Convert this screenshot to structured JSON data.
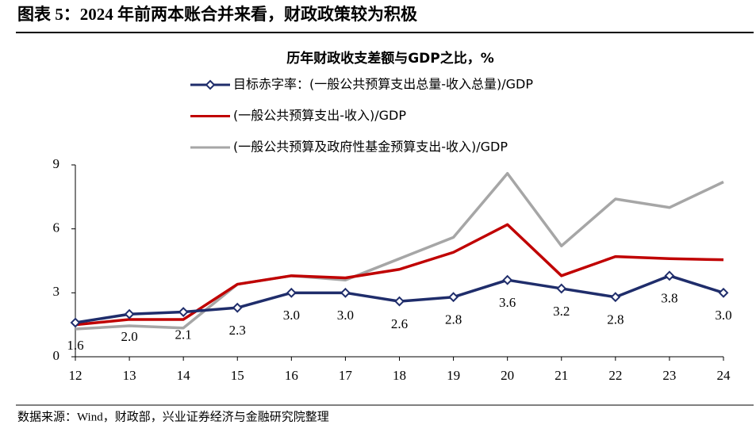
{
  "header": {
    "title": "图表 5：2024 年前两本账合并来看，财政政策较为积极"
  },
  "chart_data": {
    "type": "line",
    "title": "历年财政收支差额与GDP之比，%",
    "categories": [
      "12",
      "13",
      "14",
      "15",
      "16",
      "17",
      "18",
      "19",
      "20",
      "21",
      "22",
      "23",
      "24"
    ],
    "series": [
      {
        "name": "目标赤字率：(一般公共预算支出总量-收入总量)/GDP",
        "color": "#1f2d6b",
        "marker": "diamond",
        "values": [
          1.6,
          2.0,
          2.1,
          2.3,
          3.0,
          3.0,
          2.6,
          2.8,
          3.6,
          3.2,
          2.8,
          3.8,
          3.0
        ],
        "value_labels": [
          "1.6",
          "2.0",
          "2.1",
          "2.3",
          "3.0",
          "3.0",
          "2.6",
          "2.8",
          "3.6",
          "3.2",
          "2.8",
          "3.8",
          "3.0"
        ]
      },
      {
        "name": "(一般公共预算支出-收入)/GDP",
        "color": "#c00000",
        "values": [
          1.5,
          1.75,
          1.75,
          3.4,
          3.8,
          3.7,
          4.1,
          4.9,
          6.2,
          3.8,
          4.7,
          4.6,
          4.55
        ]
      },
      {
        "name": "(一般公共预算及政府性基金预算支出-收入)/GDP",
        "color": "#a6a6a6",
        "values": [
          1.3,
          1.45,
          1.35,
          3.4,
          3.8,
          3.6,
          4.6,
          5.6,
          8.6,
          5.2,
          7.4,
          7.0,
          8.2
        ]
      }
    ],
    "ylim": [
      0,
      9
    ],
    "yticks": [
      0,
      3,
      6,
      9
    ]
  },
  "footer": {
    "source": "数据来源：Wind，财政部，兴业证券经济与金融研究院整理"
  }
}
